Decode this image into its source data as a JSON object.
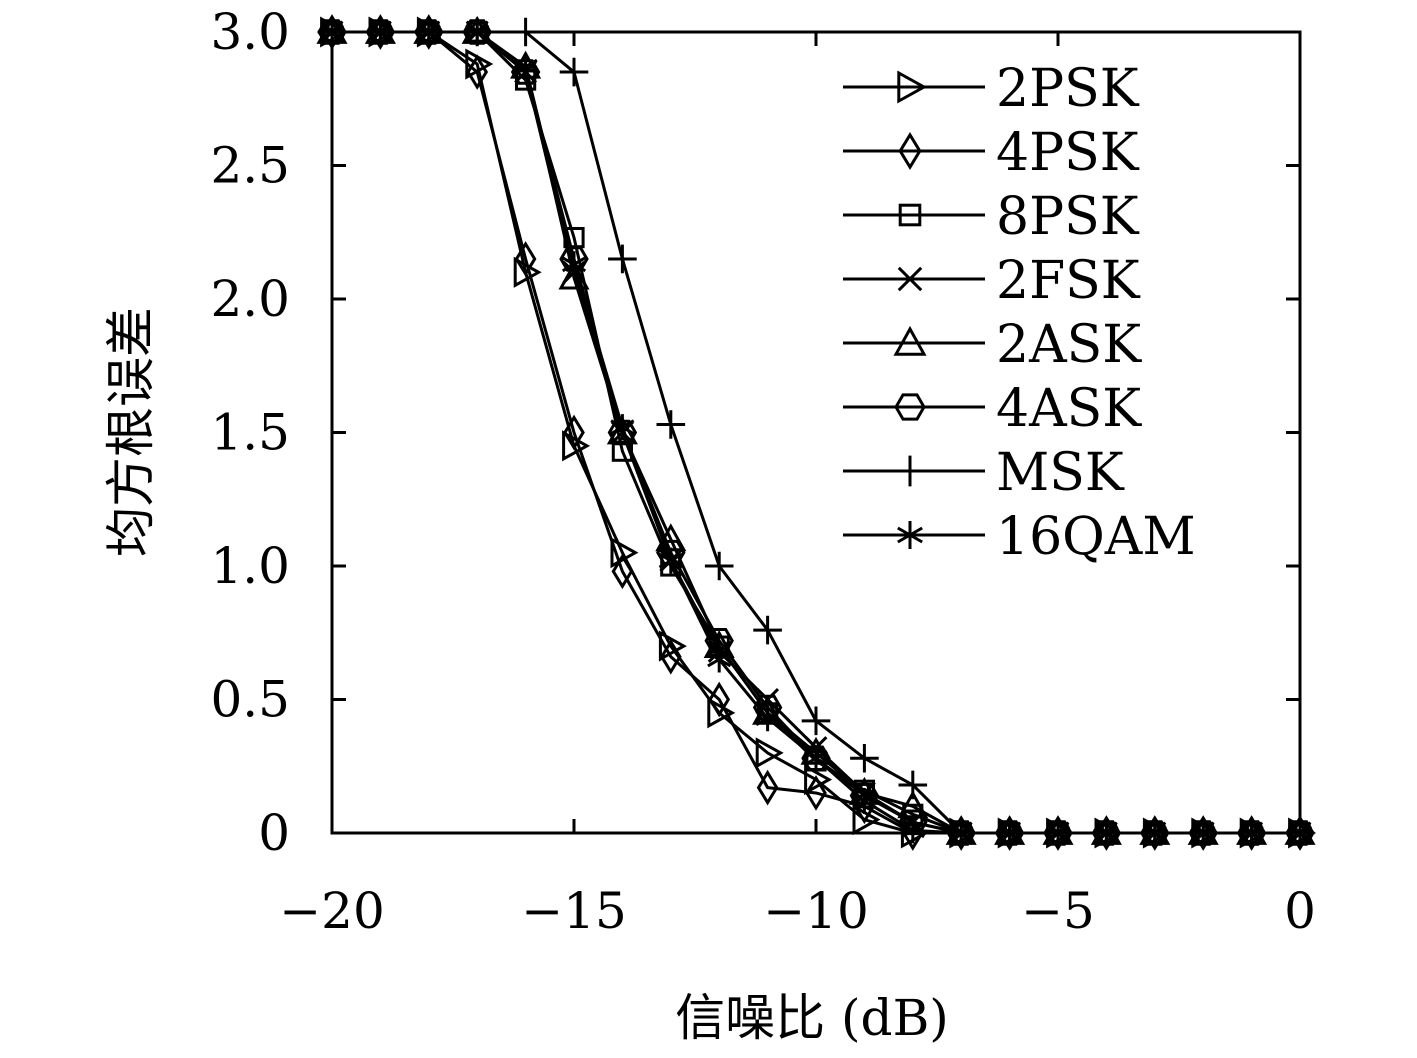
{
  "chart_data": {
    "type": "line",
    "xlabel": "信噪比 (dB)",
    "ylabel": "均方根误差",
    "xlim": [
      -20,
      0
    ],
    "ylim": [
      0,
      3.0
    ],
    "x_ticks": [
      -20,
      -15,
      -10,
      -5,
      0
    ],
    "x_tick_labels": [
      "−20",
      "−15",
      "−10",
      "−5",
      "0"
    ],
    "y_ticks": [
      0,
      0.5,
      1.0,
      1.5,
      2.0,
      2.5,
      3.0
    ],
    "y_tick_labels": [
      "0",
      "0.5",
      "1.0",
      "1.5",
      "2.0",
      "2.5",
      "3.0"
    ],
    "grid": false,
    "legend_position": "top-right",
    "x": [
      -20,
      -19,
      -18,
      -17,
      -16,
      -15,
      -14,
      -13,
      -12,
      -11,
      -10,
      -9,
      -8,
      -7,
      -6,
      -5,
      -4,
      -3,
      -2,
      -1,
      0
    ],
    "series": [
      {
        "name": "2PSK",
        "marker": "triangle-right",
        "values": [
          3.0,
          3.0,
          3.0,
          2.88,
          2.1,
          1.45,
          1.05,
          0.7,
          0.45,
          0.3,
          0.2,
          0.05,
          0.0,
          0.0,
          0.0,
          0.0,
          0.0,
          0.0,
          0.0,
          0.0,
          0.0
        ]
      },
      {
        "name": "4PSK",
        "marker": "diamond",
        "values": [
          3.0,
          3.0,
          3.0,
          2.85,
          2.15,
          1.5,
          0.98,
          0.66,
          0.5,
          0.17,
          0.15,
          0.1,
          0.0,
          0.0,
          0.0,
          0.0,
          0.0,
          0.0,
          0.0,
          0.0,
          0.0
        ]
      },
      {
        "name": "8PSK",
        "marker": "square",
        "values": [
          3.0,
          3.0,
          3.0,
          3.0,
          2.82,
          2.23,
          1.43,
          1.0,
          0.7,
          0.45,
          0.27,
          0.16,
          0.07,
          0.0,
          0.0,
          0.0,
          0.0,
          0.0,
          0.0,
          0.0,
          0.0
        ]
      },
      {
        "name": "2FSK",
        "marker": "x",
        "values": [
          3.0,
          3.0,
          3.0,
          3.0,
          2.85,
          2.1,
          1.5,
          1.02,
          0.68,
          0.5,
          0.32,
          0.15,
          0.04,
          0.0,
          0.0,
          0.0,
          0.0,
          0.0,
          0.0,
          0.0,
          0.0
        ]
      },
      {
        "name": "2ASK",
        "marker": "triangle-up",
        "values": [
          3.0,
          3.0,
          3.0,
          3.0,
          2.87,
          2.08,
          1.5,
          1.1,
          0.7,
          0.45,
          0.3,
          0.15,
          0.1,
          0.0,
          0.0,
          0.0,
          0.0,
          0.0,
          0.0,
          0.0,
          0.0
        ]
      },
      {
        "name": "4ASK",
        "marker": "hexagon",
        "values": [
          3.0,
          3.0,
          3.0,
          3.0,
          2.85,
          2.15,
          1.5,
          1.05,
          0.72,
          0.47,
          0.28,
          0.14,
          0.04,
          0.0,
          0.0,
          0.0,
          0.0,
          0.0,
          0.0,
          0.0,
          0.0
        ]
      },
      {
        "name": "MSK",
        "marker": "plus",
        "values": [
          3.0,
          3.0,
          3.0,
          3.0,
          3.0,
          2.85,
          2.15,
          1.53,
          1.0,
          0.76,
          0.42,
          0.28,
          0.18,
          0.0,
          0.0,
          0.0,
          0.0,
          0.0,
          0.0,
          0.0,
          0.0
        ]
      },
      {
        "name": "16QAM",
        "marker": "asterisk",
        "values": [
          3.0,
          3.0,
          3.0,
          3.0,
          2.87,
          2.13,
          1.52,
          1.02,
          0.65,
          0.43,
          0.28,
          0.12,
          0.01,
          0.0,
          0.0,
          0.0,
          0.0,
          0.0,
          0.0,
          0.0,
          0.0
        ]
      }
    ]
  }
}
